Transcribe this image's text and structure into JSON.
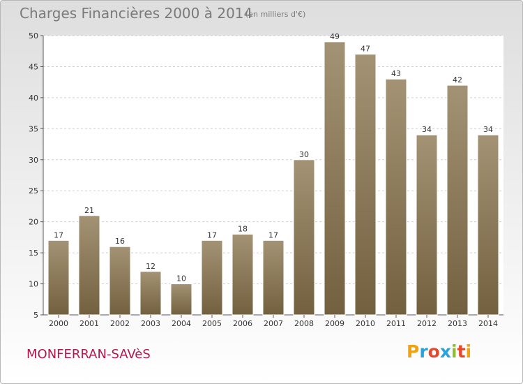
{
  "header": {
    "title": "Charges Financières 2000 à 2014",
    "subtitle": "(en milliers d'€)"
  },
  "footer": {
    "commune": "MONFERRAN-SAVèS",
    "logo_text": "Proxiti"
  },
  "colors": {
    "bar_top": "#a39374",
    "bar_bottom": "#73603f",
    "grid": "#cfcfcf",
    "commune": "#b2184e"
  },
  "chart_data": {
    "type": "bar",
    "title": "Charges Financières 2000 à 2014",
    "subtitle": "(en milliers d'€)",
    "xlabel": "",
    "ylabel": "",
    "categories": [
      "2000",
      "2001",
      "2002",
      "2003",
      "2004",
      "2005",
      "2006",
      "2007",
      "2008",
      "2009",
      "2010",
      "2011",
      "2012",
      "2013",
      "2014"
    ],
    "values": [
      17,
      21,
      16,
      12,
      10,
      17,
      18,
      17,
      30,
      49,
      47,
      43,
      34,
      42,
      34
    ],
    "ylim": [
      5,
      50
    ],
    "yticks": [
      5,
      10,
      15,
      20,
      25,
      30,
      35,
      40,
      45,
      50
    ],
    "grid": true,
    "data_labels": true
  }
}
